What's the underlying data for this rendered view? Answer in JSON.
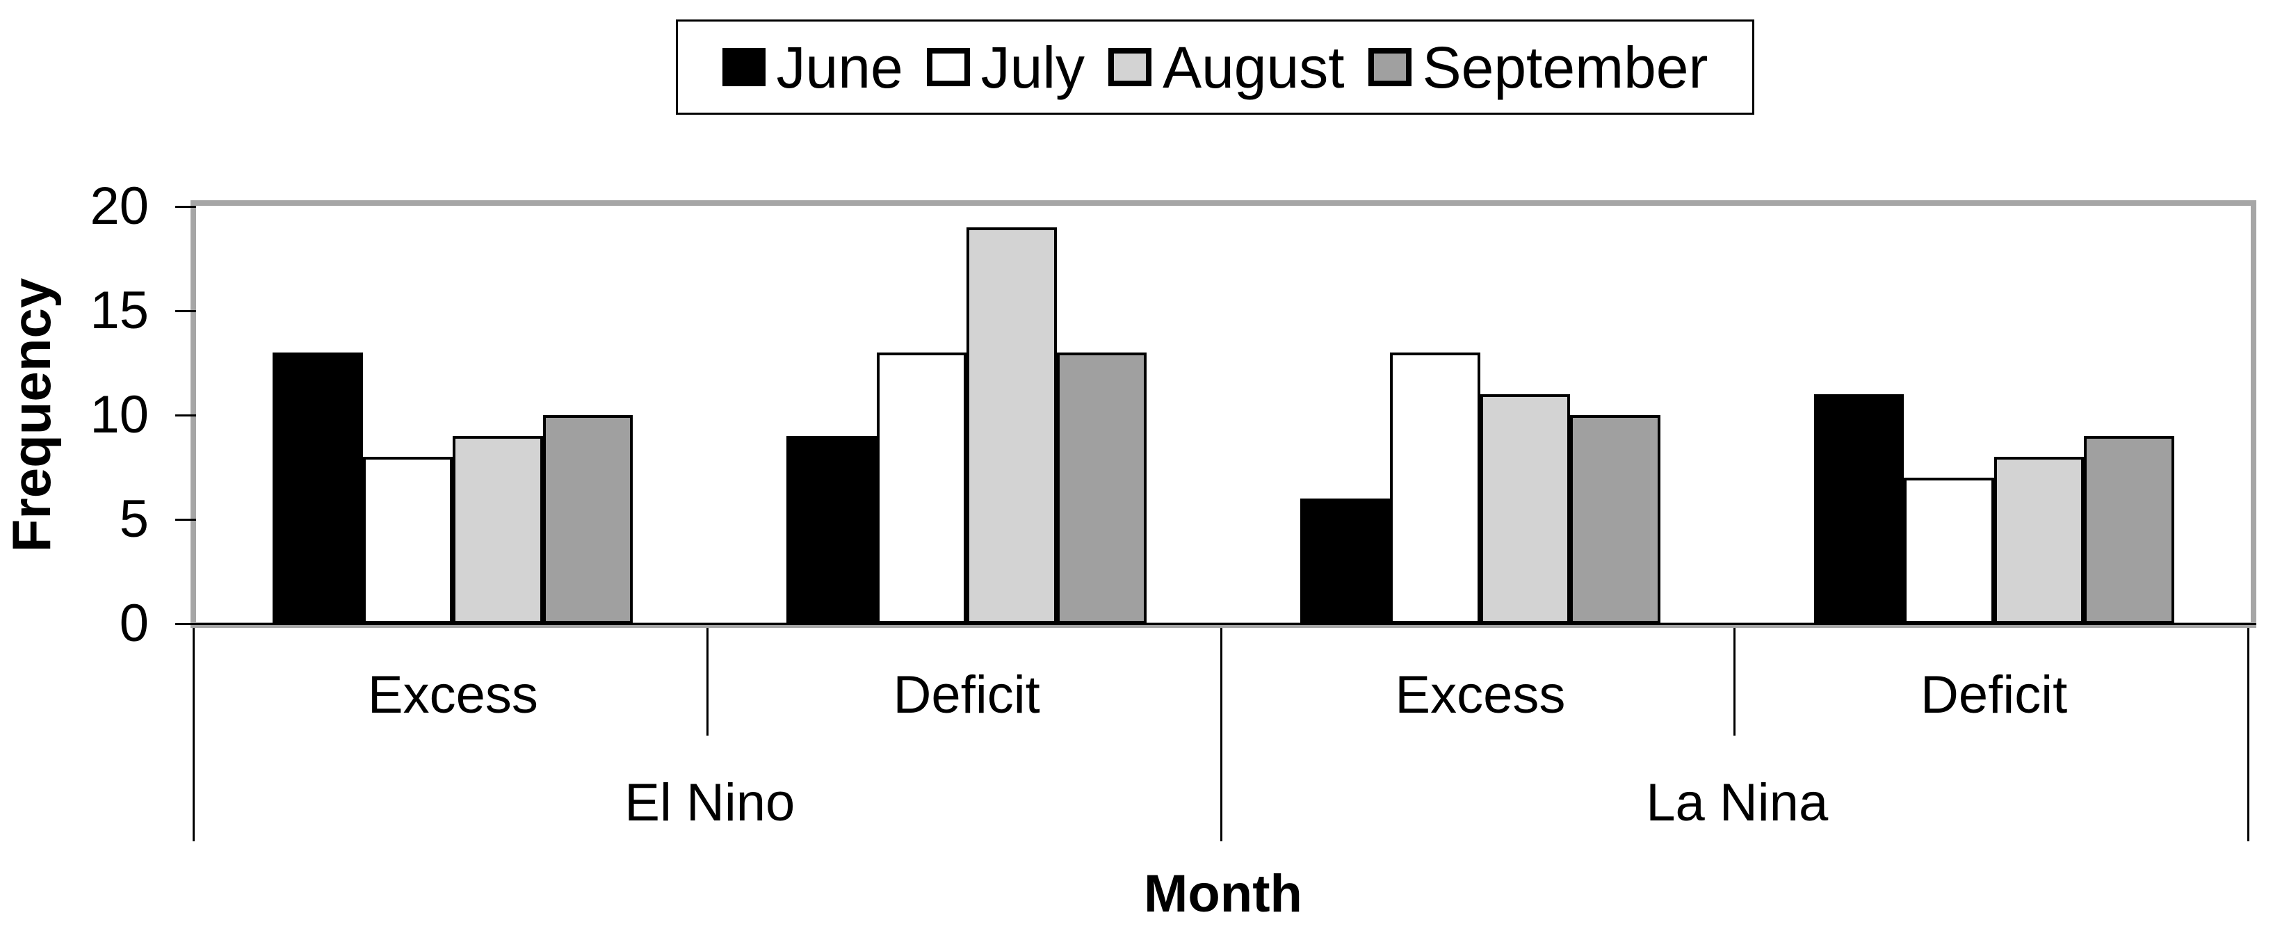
{
  "chart_data": {
    "type": "bar",
    "title": "",
    "ylabel": "Frequency",
    "xlabel": "Month",
    "ylim": [
      0,
      20
    ],
    "yticks": [
      0,
      5,
      10,
      15,
      20
    ],
    "grid": false,
    "legend_position": "top",
    "group_labels": [
      "El Nino",
      "La Nina"
    ],
    "categories": [
      "Excess",
      "Deficit",
      "Excess",
      "Deficit"
    ],
    "category_groups": [
      0,
      0,
      1,
      1
    ],
    "series": [
      {
        "name": "June",
        "color": "#000000",
        "values": [
          13,
          9,
          6,
          11
        ]
      },
      {
        "name": "July",
        "color": "#ffffff",
        "values": [
          8,
          13,
          13,
          7
        ]
      },
      {
        "name": "August",
        "color": "#d3d3d3",
        "values": [
          9,
          19,
          11,
          8
        ]
      },
      {
        "name": "September",
        "color": "#a0a0a0",
        "values": [
          10,
          13,
          10,
          9
        ]
      }
    ],
    "colors": {
      "bar_border": "#000000",
      "plot_border": "#a6a6a6",
      "axis_line": "#000000",
      "background": "#ffffff"
    }
  }
}
